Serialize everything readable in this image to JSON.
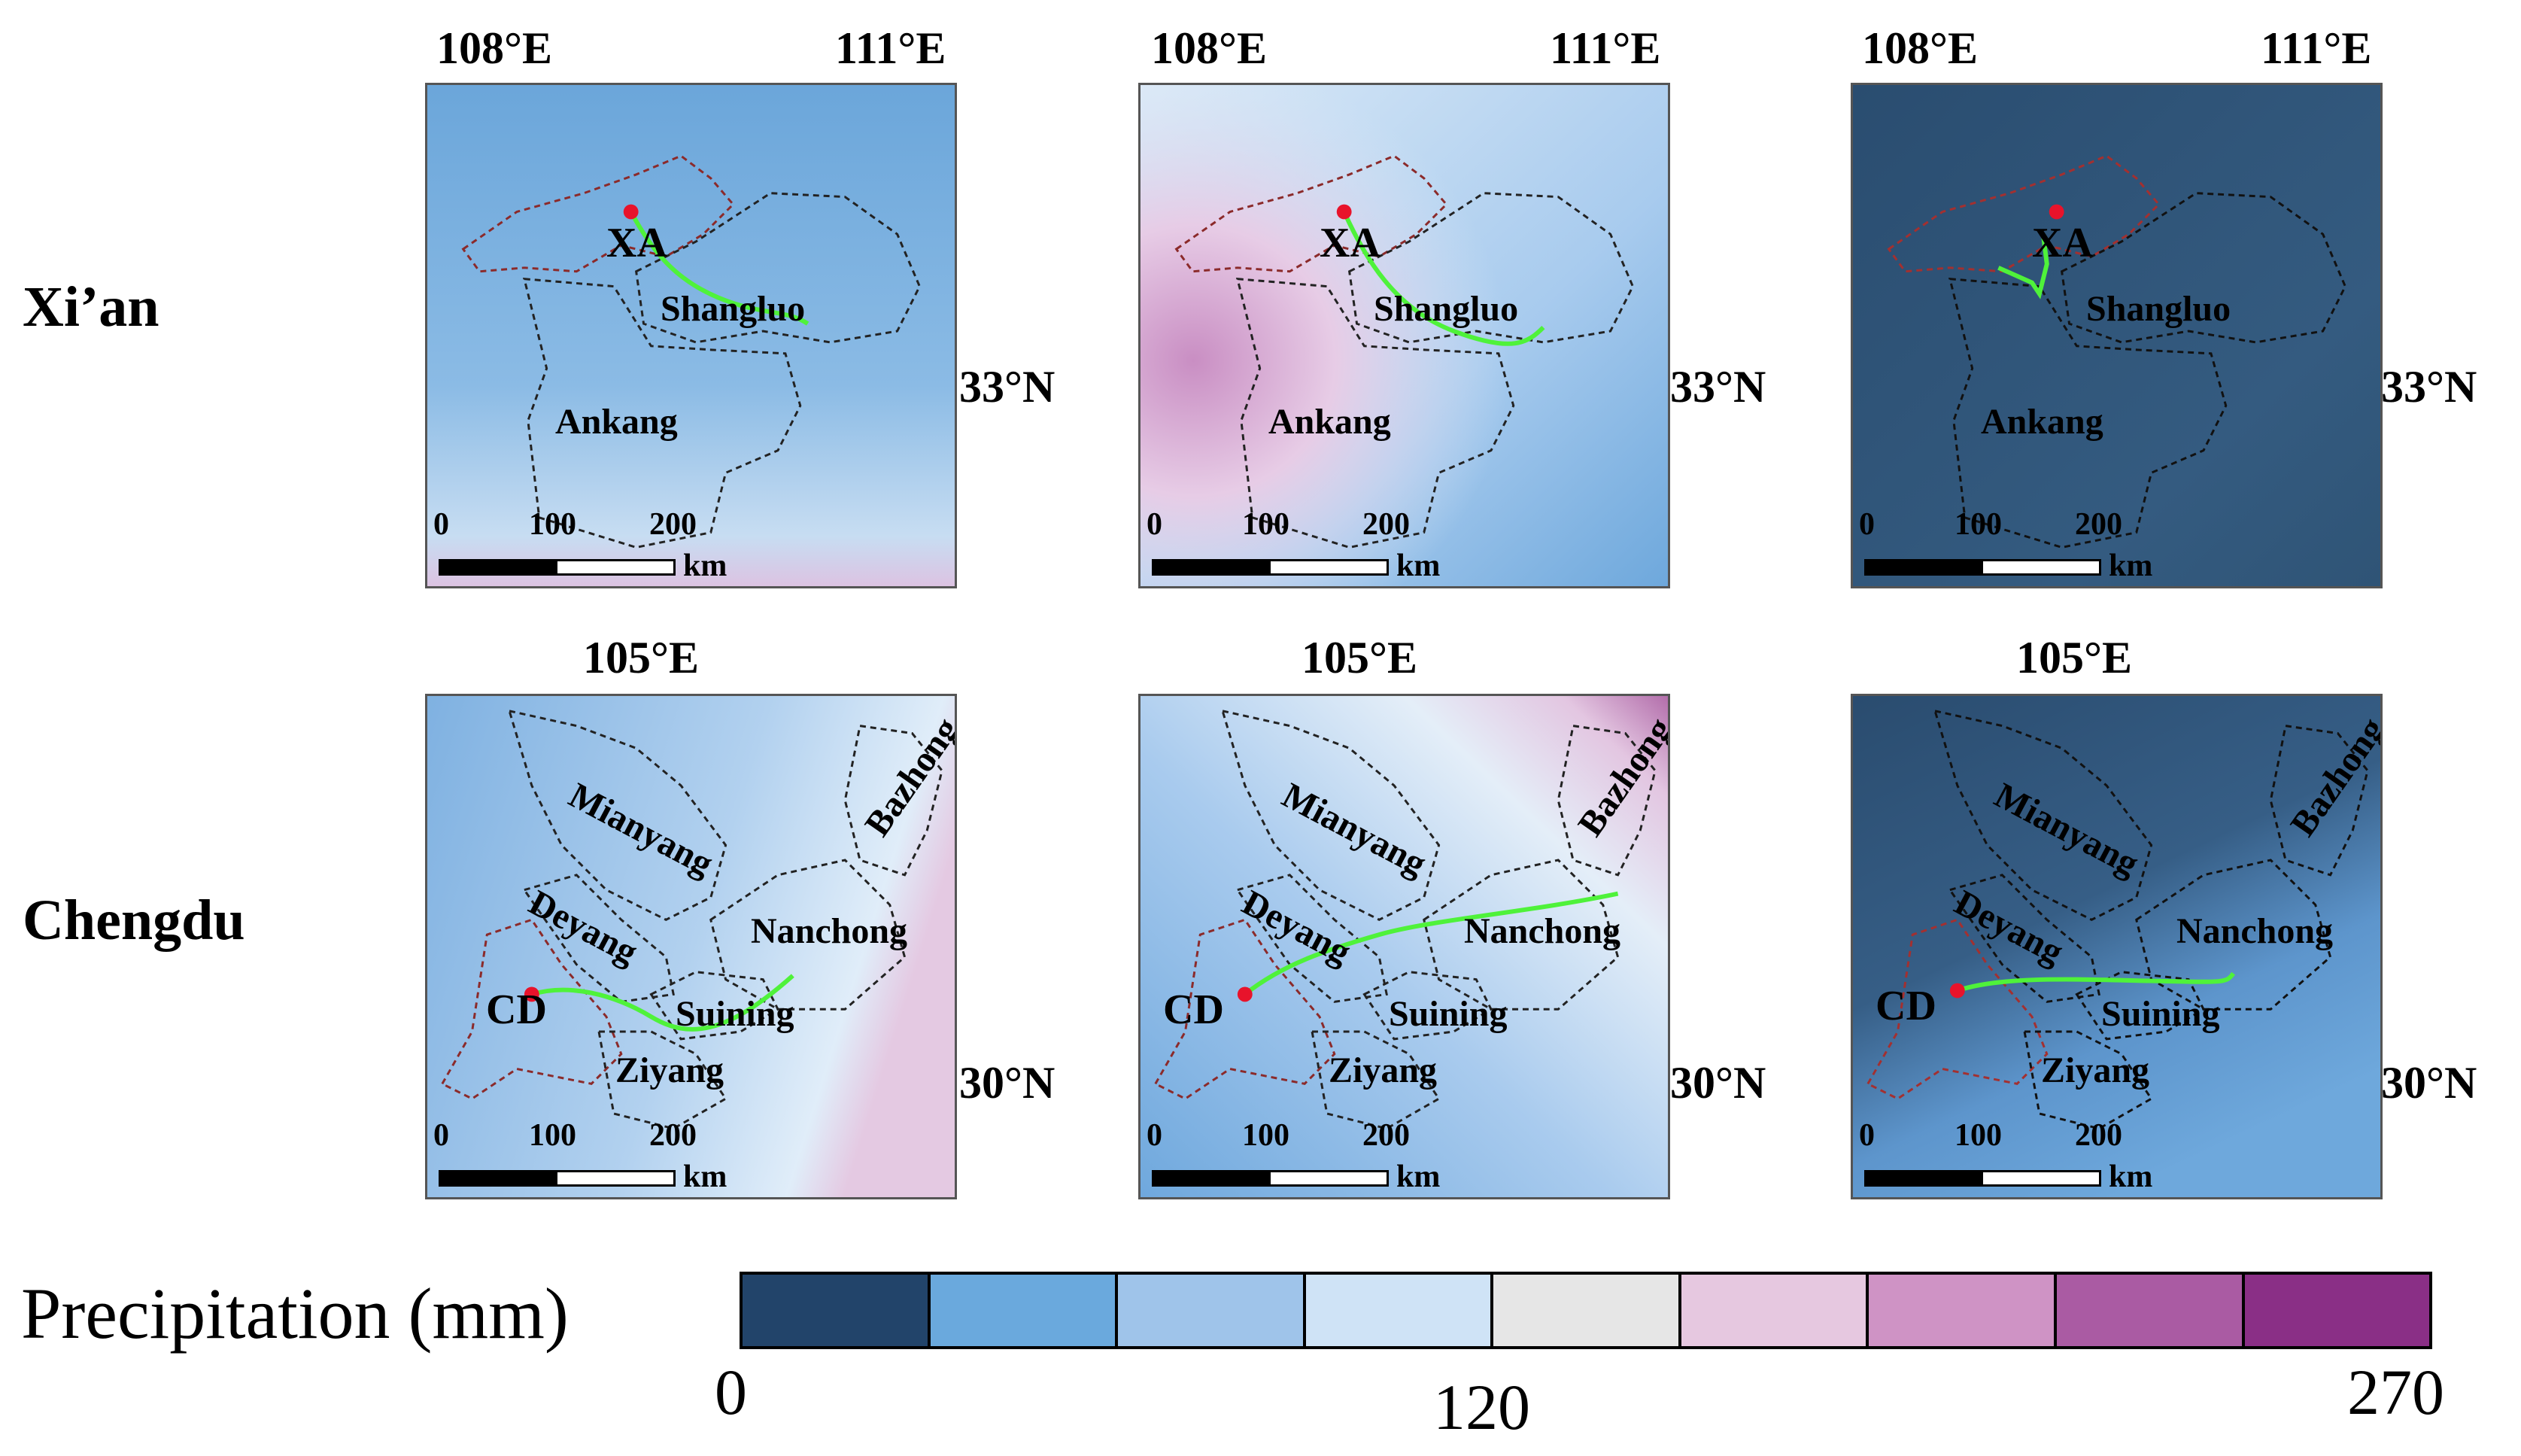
{
  "rows": {
    "xian": "Xi’an",
    "chengdu": "Chengdu"
  },
  "axes": {
    "top_lon_left": "108°E",
    "top_lon_right": "111°E",
    "top_lat": "33°N",
    "bottom_lon": "105°E",
    "bottom_lat": "30°N"
  },
  "xian_places": {
    "city": "XA",
    "a": "Shangluo",
    "b": "Ankang"
  },
  "chengdu_places": {
    "city": "CD",
    "a": "Mianyang",
    "b": "Deyang",
    "c": "Suining",
    "d": "Ziyang",
    "e": "Nanchong",
    "f": "Bazhong"
  },
  "scale": {
    "n0": "0",
    "n1": "100",
    "n2": "200",
    "unit": "km"
  },
  "legend": {
    "title": "Precipitation (mm)",
    "min": "0",
    "mid": "120",
    "max": "270",
    "colors": [
      "#22446a",
      "#6aa9dd",
      "#9fc4ea",
      "#cfe3f6",
      "#e6e6e6",
      "#e6c8e0",
      "#cf93c5",
      "#aa5ba3",
      "#8a2f86"
    ]
  },
  "panel_colors": {
    "xian_1": "#6ea8dc",
    "xian_2": "#aecfee",
    "xian_3": "#2b4f72",
    "chengdu_1": "#a7c8ea",
    "chengdu_2": "#b9d6f2",
    "chengdu_3": "#2b4f72"
  }
}
